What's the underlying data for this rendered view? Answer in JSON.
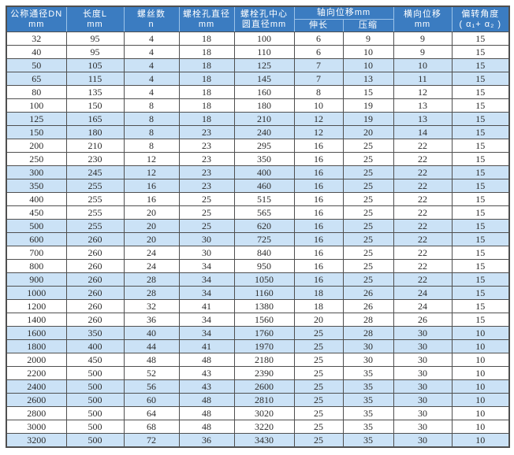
{
  "table": {
    "header": {
      "col_dn": {
        "line1": "公称通径DN",
        "line2": "mm"
      },
      "col_length": {
        "line1": "长度L",
        "line2": "mm"
      },
      "col_bolt_count": {
        "line1": "螺丝数",
        "line2": "n"
      },
      "col_hole_dia": {
        "line1": "螺栓孔直径",
        "line2": "mm"
      },
      "col_circle_dia": {
        "line1": "螺栓孔中心",
        "line2": "圆直径mm"
      },
      "col_axial": {
        "label": "轴向位移mm",
        "sub_extend": "伸长",
        "sub_compress": "压缩"
      },
      "col_lateral": {
        "line1": "横向位移",
        "line2": "mm"
      },
      "col_angle": {
        "line1": "偏转角度",
        "line2": "( α₁+ α₂ )"
      }
    },
    "rows": [
      [
        32,
        95,
        4,
        18,
        100,
        6,
        9,
        9,
        15
      ],
      [
        40,
        95,
        4,
        18,
        110,
        6,
        10,
        9,
        15
      ],
      [
        50,
        105,
        4,
        18,
        125,
        7,
        10,
        10,
        15
      ],
      [
        65,
        115,
        4,
        18,
        145,
        7,
        13,
        11,
        15
      ],
      [
        80,
        135,
        4,
        18,
        160,
        8,
        15,
        12,
        15
      ],
      [
        100,
        150,
        8,
        18,
        180,
        10,
        19,
        13,
        15
      ],
      [
        125,
        165,
        8,
        18,
        210,
        12,
        19,
        13,
        15
      ],
      [
        150,
        180,
        8,
        23,
        240,
        12,
        20,
        14,
        15
      ],
      [
        200,
        210,
        8,
        23,
        295,
        16,
        25,
        22,
        15
      ],
      [
        250,
        230,
        12,
        23,
        350,
        16,
        25,
        22,
        15
      ],
      [
        300,
        245,
        12,
        23,
        400,
        16,
        25,
        22,
        15
      ],
      [
        350,
        255,
        16,
        23,
        460,
        16,
        25,
        22,
        15
      ],
      [
        400,
        255,
        16,
        25,
        515,
        16,
        25,
        22,
        15
      ],
      [
        450,
        255,
        20,
        25,
        565,
        16,
        25,
        22,
        15
      ],
      [
        500,
        255,
        20,
        25,
        620,
        16,
        25,
        22,
        15
      ],
      [
        600,
        260,
        20,
        30,
        725,
        16,
        25,
        22,
        15
      ],
      [
        700,
        260,
        24,
        30,
        840,
        16,
        25,
        22,
        15
      ],
      [
        800,
        260,
        24,
        34,
        950,
        16,
        25,
        22,
        15
      ],
      [
        900,
        260,
        28,
        34,
        1050,
        16,
        25,
        22,
        15
      ],
      [
        1000,
        260,
        28,
        34,
        1160,
        18,
        26,
        24,
        15
      ],
      [
        1200,
        260,
        32,
        41,
        1380,
        18,
        26,
        24,
        15
      ],
      [
        1400,
        260,
        36,
        34,
        1560,
        20,
        28,
        26,
        15
      ],
      [
        1600,
        350,
        40,
        34,
        1760,
        25,
        28,
        30,
        10
      ],
      [
        1800,
        400,
        44,
        41,
        1970,
        25,
        30,
        30,
        10
      ],
      [
        2000,
        450,
        48,
        48,
        2180,
        25,
        30,
        30,
        10
      ],
      [
        2200,
        500,
        52,
        43,
        2390,
        25,
        35,
        30,
        10
      ],
      [
        2400,
        500,
        56,
        43,
        2600,
        25,
        35,
        30,
        10
      ],
      [
        2600,
        500,
        60,
        48,
        2810,
        25,
        35,
        30,
        10
      ],
      [
        2800,
        500,
        64,
        48,
        3020,
        25,
        35,
        30,
        10
      ],
      [
        3000,
        500,
        68,
        48,
        3220,
        25,
        35,
        30,
        10
      ],
      [
        3200,
        500,
        72,
        36,
        3430,
        25,
        35,
        30,
        10
      ]
    ]
  },
  "colors": {
    "header_bg": "#3b7cc1",
    "header_text": "#ffffff",
    "row_bg": "#ffffff",
    "row_alt_bg": "#cbe2f6",
    "border": "#4f4f4f",
    "cell_text": "#2b2b2b",
    "page_bg": "#ffffff"
  }
}
